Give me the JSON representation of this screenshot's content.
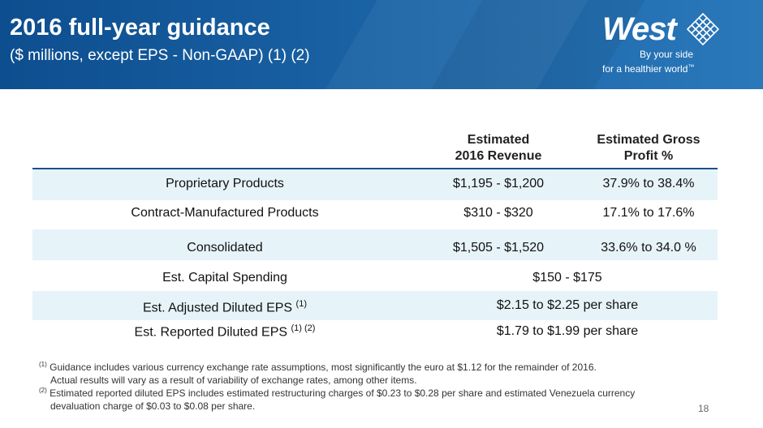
{
  "header": {
    "title": "2016 full-year guidance",
    "subtitle": "($ millions, except EPS - Non-GAAP) (1) (2)"
  },
  "logo": {
    "word": "West",
    "tagline_1": "By your side",
    "tagline_2": "for a healthier world",
    "tm": "™"
  },
  "table": {
    "col_revenue_1": "Estimated",
    "col_revenue_2": "2016 Revenue",
    "col_gp_1": "Estimated Gross",
    "col_gp_2": "Profit %",
    "rows": [
      {
        "label": "Proprietary Products",
        "revenue": "$1,195 - $1,200",
        "gp": "37.9% to 38.4%"
      },
      {
        "label": "Contract-Manufactured Products",
        "revenue": "$310 - $320",
        "gp": "17.1% to 17.6%"
      },
      {
        "label": "Consolidated",
        "revenue": "$1,505 - $1,520",
        "gp": "33.6% to 34.0 %"
      }
    ],
    "capex_label": "Est. Capital Spending",
    "capex_value": "$150 - $175",
    "adj_eps_label": "Est. Adjusted Diluted EPS",
    "adj_eps_sup": "(1)",
    "adj_eps_value": "$2.15 to $2.25 per share",
    "rep_eps_label": "Est. Reported Diluted EPS",
    "rep_eps_sup": "(1) (2)",
    "rep_eps_value": "$1.79 to $1.99 per share"
  },
  "footnotes": {
    "fn1_marker": "(1)",
    "fn1_line1": "Guidance includes various currency exchange rate assumptions, most significantly the euro at $1.12 for the remainder of 2016.",
    "fn1_line2": "Actual results will vary as a result of variability of exchange rates, among other items.",
    "fn2_marker": "(2)",
    "fn2_line1": "Estimated reported diluted EPS includes estimated restructuring charges of $0.23 to $0.28 per share and estimated Venezuela currency",
    "fn2_line2": "devaluation charge of $0.03 to $0.08 per share."
  },
  "page_number": "18",
  "colors": {
    "header_blue": "#1a63a5",
    "row_shade": "#e6f3f9",
    "rule": "#1d4f8a"
  }
}
